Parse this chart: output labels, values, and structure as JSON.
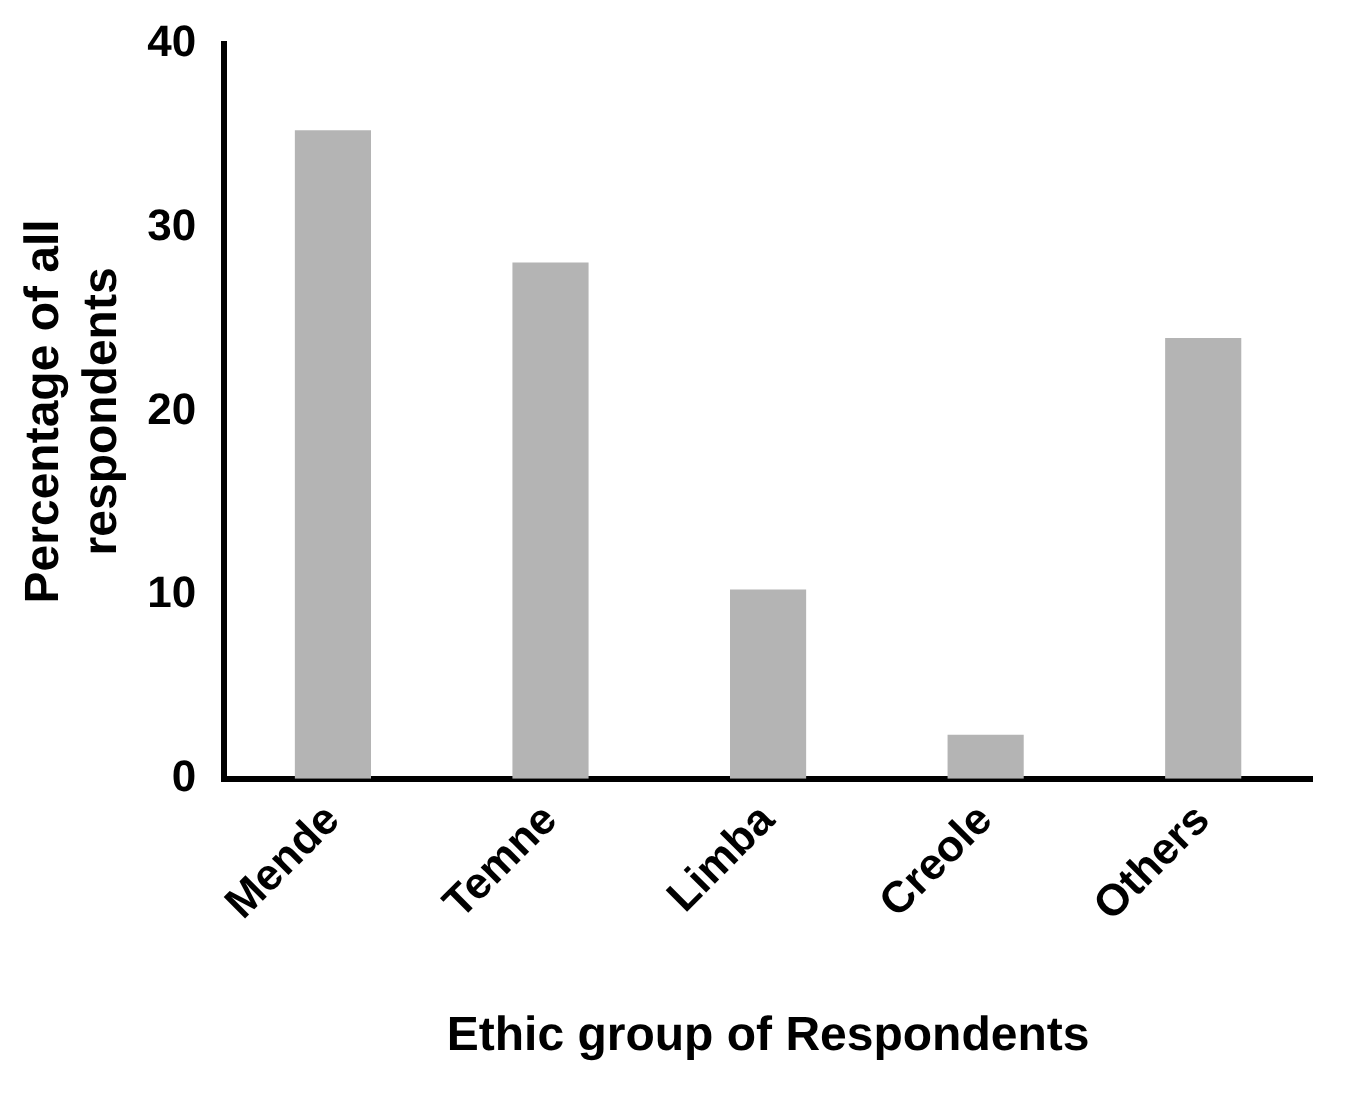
{
  "chart_data": {
    "type": "bar",
    "xlabel": "Ethic group of Respondents",
    "ylabel": "Percentage of all respondents",
    "categories": [
      "Mende",
      "Temne",
      "Limba",
      "Creole",
      "Others"
    ],
    "values": [
      35.3,
      28.1,
      10.3,
      2.4,
      24.0
    ],
    "color": "#b4b4b4",
    "ylim": [
      0,
      40
    ],
    "yticks": [
      0,
      10,
      20,
      30,
      40
    ],
    "grid": false
  }
}
